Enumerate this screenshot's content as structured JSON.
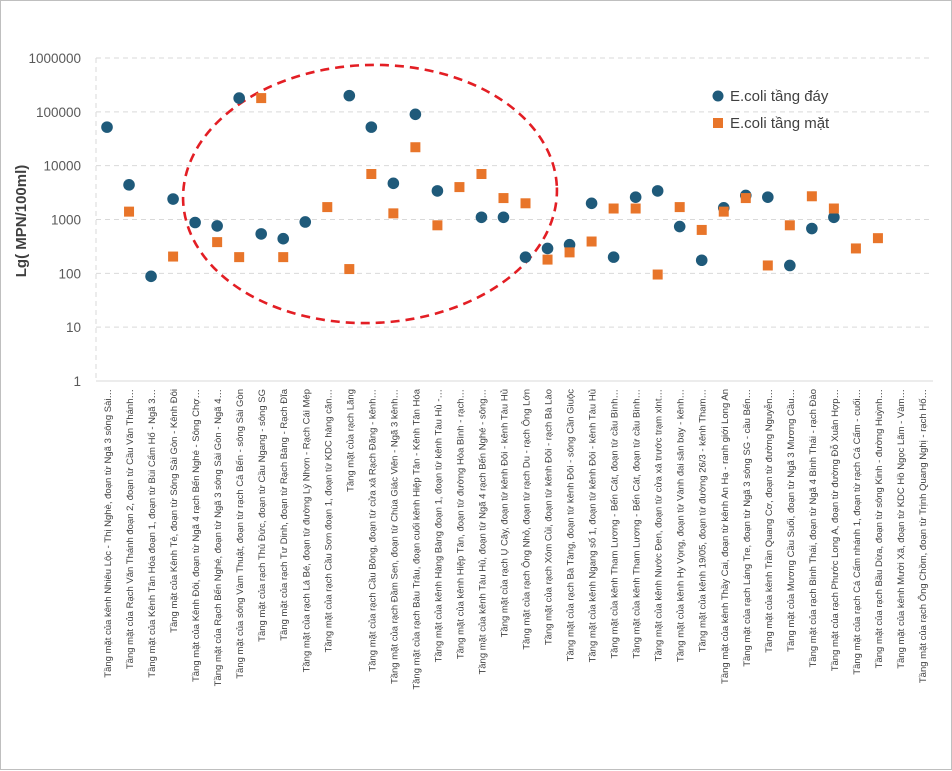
{
  "colors": {
    "day_series": "#1f5a7a",
    "surface_series": "#e8752a",
    "gridline": "#d9d9d9",
    "ellipse": "#e31e24"
  },
  "chart_data": {
    "type": "scatter",
    "ylabel": "Lg( MPN/100ml)",
    "yscale": "log",
    "ylim": [
      1,
      1000000
    ],
    "yticks": [
      "1",
      "10",
      "100",
      "1000",
      "10000",
      "100000",
      "1000000"
    ],
    "grid": "horizontal dashed",
    "legend_position": "top-right",
    "annotation": "red dashed ellipse highlighting points 7–20",
    "categories": [
      "Tầng mặt của kênh Nhiêu Lộc - Thị Nghè, đoạn từ Ngã 3 sông Sài…",
      "Tầng mặt của Rạch Văn Thánh đoạn 2, đoạn từ Cầu Văn Thánh…",
      "Tầng mặt của Kênh Tân Hóa đoạn 1, đoạn từ Bùi Cẩm Hổ - Ngã 3…",
      "Tầng mặt của Kênh Tẻ, đoạn từ Sông Sài Gòn - Kênh Đôi",
      "Tầng mặt của Kênh Đôi, đoạn từ Ngã 4 rạch Bến Nghé - Sông Chợ…",
      "Tầng mặt của Rạch Bến Nghé, đoạn từ Ngã 3 sông Sài Gòn - Ngã 4…",
      "Tầng mặt của sông Vàm Thuật, đoạn từ rạch Cả Bến - sông Sài Gòn",
      "Tầng mặt của rạch Thủ Đức, đoạn từ Cầu Ngang - sông SG",
      "Tầng mặt của rạch Tư Dinh, đoạn từ Rạch Bàng - Rạch Đĩa",
      "Tầng mặt của rạch Lá Bé, đoạn từ đường Lý Nhơn - Rạch Cái Mép",
      "Tầng mặt của rạch Cầu Sơn đoạn 1, đoạn từ KDC hàng căn…",
      "Tầng mặt của rạch Lăng",
      "Tầng mặt của rạch Cầu Bông, đoạn từ cửa xả Rạch Đăng - kênh…",
      "Tầng mặt của rạch Đầm Sen, đoạn từ Chùa Giác Viên - Ngã 3 kênh…",
      "Tầng mặt của rạch Bàu Trâu, đoạn cuối kênh Hiệp Tân - Kênh Tân Hóa",
      "Tầng mặt của kênh Hàng Bàng đoạn 1, đoạn từ kênh Tàu Hủ -…",
      "Tầng mặt của kênh Hiệp Tân, đoạn từ đường Hòa Bình - rạch…",
      "Tầng mặt của kênh Tàu Hủ, đoạn từ Ngã 4 rạch Bến Nghé - sông…",
      "Tầng mặt của rạch Ụ Cây, đoạn từ kênh Đôi - kênh Tàu Hủ",
      "Tầng mặt của rạch Ông Nhỏ, đoạn từ rạch Du - rạch Ông Lớn",
      "Tầng mặt của rạch Xóm Củi, đoạn từ kênh Đôi - rạch Bà Lào",
      "Tầng mặt của rạch Bà Tàng, đoạn từ kênh Đôi - sông Cần Giuộc",
      "Tầng mặt của kênh Ngang số 1, đoạn từ kênh Đôi - kênh Tàu Hủ",
      "Tầng mặt của kênh Tham Lương - Bến Cát, đoạn từ cầu Bình…",
      "Tầng mặt của kênh Tham Lương - Bến Cát, đoạn từ cầu Bình…",
      "Tầng mặt của kênh Nước Đen, đoạn từ cửa xả trước trạm xlnt…",
      "Tầng mặt của kênh Hy Vọng, đoạn từ Vành đai sân bay - kênh…",
      "Tầng mặt của kênh 19/05, đoạn từ đường 26/3 - kênh Tham…",
      "Tầng mặt của kênh Thầy Cai, đoạn từ kênh An Hạ - ranh giới Long An",
      "Tầng mặt của rạch Láng Tre, đoạn từ Ngã 3 sông SG - cầu Bến…",
      "Tầng mặt của kênh Trần Quang Cơ, đoạn từ đường Nguyễn…",
      "Tầng mặt  của Mương Cầu Suối, đoạn từ Ngã 3 Mương Cầu…",
      "Tầng mặt của rạch Bình Thái, đoạn từ Ngã 4 Bình Thái - rạch Đào",
      "Tầng mặt của rạch Phước Long A, đoạn từ đường Đỗ Xuân Hợp…",
      "Tầng mặt của rạch Cá Cấm nhánh 1, đoạn từ rạch Cá Cấm - cuối…",
      "Tầng mặt của rạch Bầu Dừa, đoạn từ sông Kinh - đường Huỳnh…",
      "Tầng mặt của kênh Mười Xã, đoạn từ KDC Hồ Ngọc Lãm - Vàm…",
      "Tầng mặt của rạch Ông Chồm, đoạn từ Trịnh Quang Nghị - rạch Hố…"
    ],
    "series": [
      {
        "name": "E.coli tầng đáy",
        "marker": "circle",
        "values": [
          52000,
          4400,
          88,
          2400,
          880,
          760,
          180000,
          540,
          440,
          900,
          null,
          200000,
          52000,
          4700,
          90000,
          3400,
          null,
          1100,
          1100,
          200,
          290,
          340,
          2000,
          200,
          2600,
          3400,
          740,
          175,
          1650,
          2800,
          2600,
          140,
          680,
          1100,
          null,
          null,
          null,
          null
        ]
      },
      {
        "name": "E.coli tầng mặt",
        "marker": "square",
        "values": [
          null,
          1400,
          null,
          205,
          null,
          380,
          200,
          180000,
          200,
          null,
          1700,
          120,
          7000,
          1300,
          22000,
          780,
          4000,
          7000,
          2500,
          2000,
          180,
          245,
          390,
          1600,
          1600,
          95,
          1700,
          640,
          1400,
          2500,
          140,
          780,
          2700,
          1600,
          290,
          450,
          null,
          null
        ]
      }
    ]
  }
}
